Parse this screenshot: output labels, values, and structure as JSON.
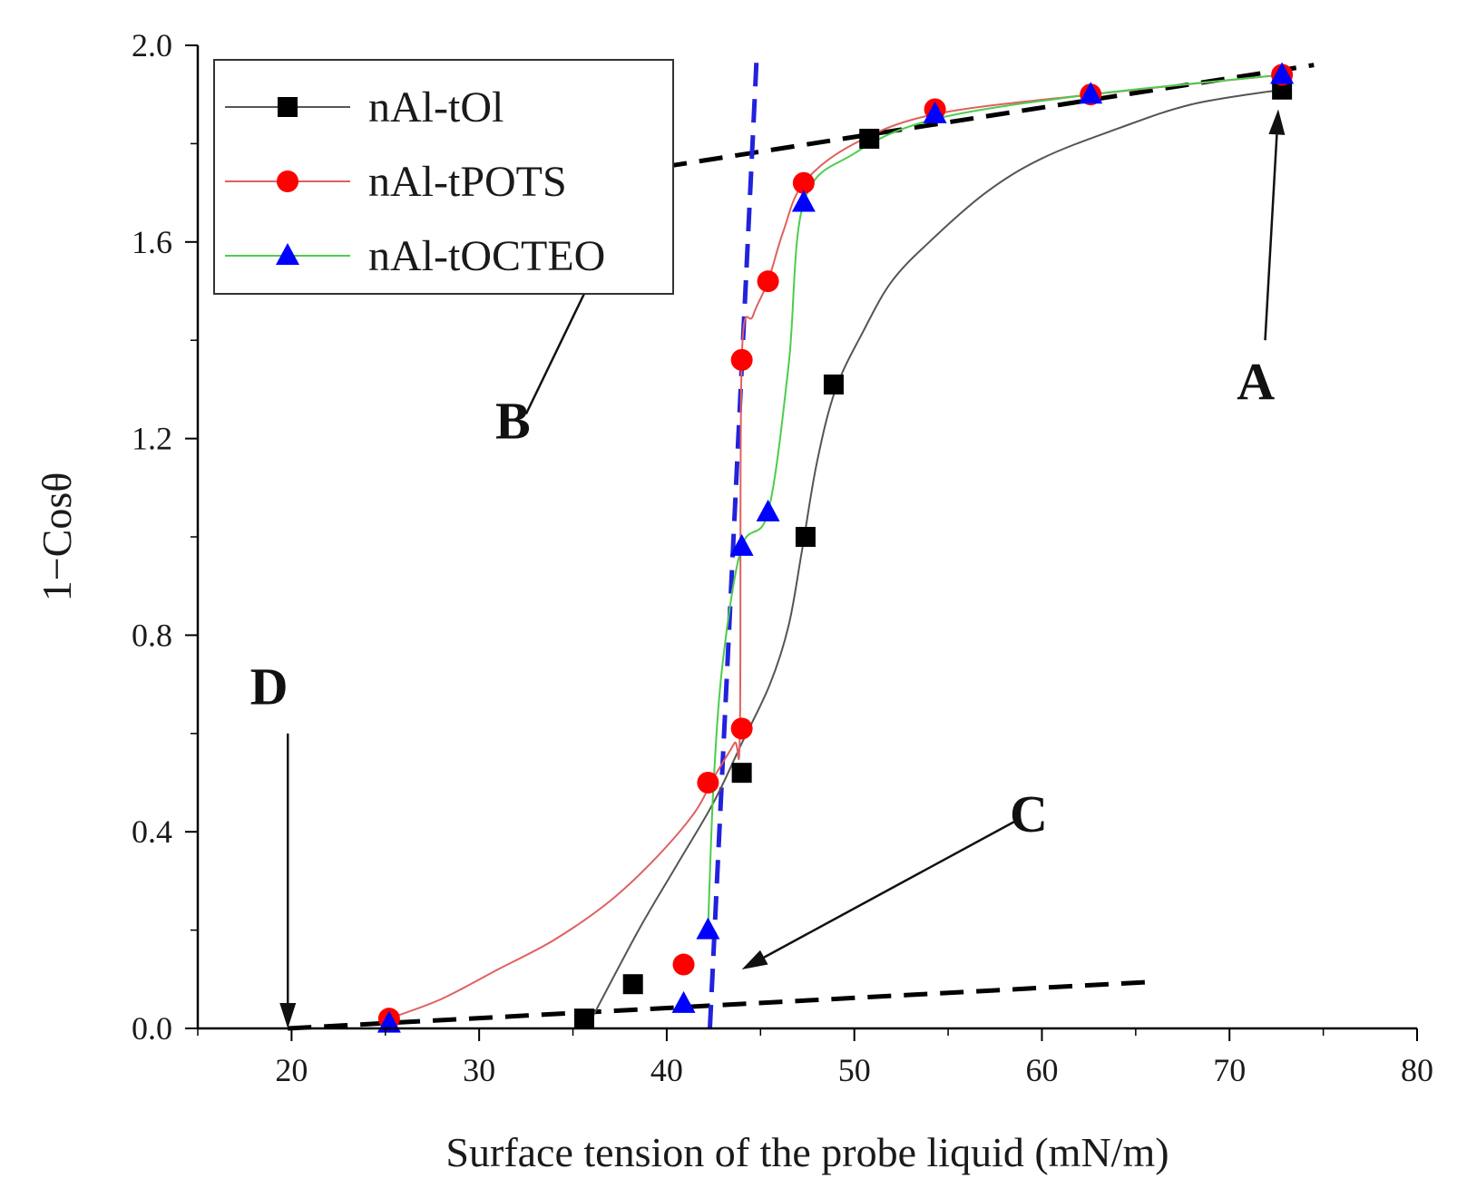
{
  "chart_data": {
    "type": "line",
    "xlabel": "Surface tension of the probe liquid (mN/m)",
    "ylabel": "1−Cosθ",
    "xlim": [
      15,
      80
    ],
    "ylim": [
      0,
      2.0
    ],
    "x_ticks": [
      20,
      30,
      40,
      50,
      60,
      70,
      80
    ],
    "y_ticks": [
      0.0,
      0.4,
      0.8,
      1.2,
      1.6,
      2.0
    ],
    "y_tick_labels": [
      "0.0",
      "0.4",
      "0.8",
      "1.2",
      "1.6",
      "2.0"
    ],
    "grid": false,
    "legend_position": "top-left",
    "series": [
      {
        "name": "nAl-tOl",
        "color": "#000000",
        "line_color": "#555555",
        "marker": "square",
        "points": [
          [
            35.6,
            0.02
          ],
          [
            38.2,
            0.09
          ],
          [
            44.0,
            0.52
          ],
          [
            47.4,
            1.0
          ],
          [
            48.9,
            1.31
          ],
          [
            50.8,
            1.81
          ],
          [
            72.8,
            1.91
          ]
        ],
        "curve": [
          [
            36.0,
            0.02
          ],
          [
            38.5,
            0.2
          ],
          [
            40.5,
            0.33
          ],
          [
            42.5,
            0.46
          ],
          [
            44.0,
            0.58
          ],
          [
            45.5,
            0.7
          ],
          [
            46.5,
            0.82
          ],
          [
            47.2,
            0.97
          ],
          [
            48.0,
            1.15
          ],
          [
            49.0,
            1.3
          ],
          [
            50.5,
            1.42
          ],
          [
            52.0,
            1.52
          ],
          [
            54.0,
            1.6
          ],
          [
            57.0,
            1.7
          ],
          [
            60.0,
            1.77
          ],
          [
            64.0,
            1.83
          ],
          [
            68.0,
            1.88
          ],
          [
            72.8,
            1.91
          ]
        ]
      },
      {
        "name": "nAl-tPOTS",
        "color": "#ff0000",
        "line_color": "#e06060",
        "marker": "circle",
        "points": [
          [
            25.2,
            0.02
          ],
          [
            40.9,
            0.13
          ],
          [
            42.2,
            0.5
          ],
          [
            44.0,
            0.61
          ],
          [
            44.0,
            1.36
          ],
          [
            45.4,
            1.52
          ],
          [
            47.3,
            1.72
          ],
          [
            54.3,
            1.87
          ],
          [
            62.6,
            1.9
          ],
          [
            72.8,
            1.94
          ]
        ],
        "curve": [
          [
            25.2,
            0.02
          ],
          [
            28.0,
            0.06
          ],
          [
            31.0,
            0.12
          ],
          [
            34.0,
            0.18
          ],
          [
            37.0,
            0.26
          ],
          [
            39.5,
            0.35
          ],
          [
            41.5,
            0.44
          ],
          [
            42.5,
            0.51
          ],
          [
            43.6,
            0.58
          ],
          [
            43.9,
            0.61
          ],
          [
            44.0,
            1.36
          ],
          [
            44.6,
            1.45
          ],
          [
            45.4,
            1.52
          ],
          [
            46.2,
            1.62
          ],
          [
            47.3,
            1.72
          ],
          [
            50.0,
            1.8
          ],
          [
            54.3,
            1.86
          ],
          [
            62.6,
            1.9
          ],
          [
            72.8,
            1.94
          ]
        ]
      },
      {
        "name": "nAl-tOCTEO",
        "color": "#0000ff",
        "line_color": "#4ccd4c",
        "marker": "triangle",
        "points": [
          [
            25.2,
            0.01
          ],
          [
            40.9,
            0.05
          ],
          [
            42.2,
            0.2
          ],
          [
            44.0,
            0.98
          ],
          [
            45.4,
            1.05
          ],
          [
            47.3,
            1.68
          ],
          [
            54.3,
            1.86
          ],
          [
            62.6,
            1.9
          ],
          [
            72.8,
            1.94
          ]
        ],
        "curve": [
          [
            42.2,
            0.2
          ],
          [
            42.5,
            0.5
          ],
          [
            43.0,
            0.75
          ],
          [
            44.0,
            0.98
          ],
          [
            45.4,
            1.05
          ],
          [
            46.5,
            1.35
          ],
          [
            47.3,
            1.68
          ],
          [
            50.0,
            1.78
          ],
          [
            54.3,
            1.85
          ],
          [
            62.6,
            1.9
          ],
          [
            72.8,
            1.94
          ]
        ]
      }
    ],
    "reference_lines": [
      {
        "color": "#000000",
        "points": [
          [
            19.8,
            0.0
          ],
          [
            66.0,
            0.095
          ]
        ]
      },
      {
        "color": "#000000",
        "points": [
          [
            36.0,
            1.73
          ],
          [
            74.5,
            1.96
          ]
        ]
      },
      {
        "color": "#2222dd",
        "points": [
          [
            42.3,
            0.0
          ],
          [
            44.8,
            1.98
          ]
        ]
      }
    ],
    "annotations": [
      {
        "text": "A",
        "label_at": [
          71.4,
          1.28
        ],
        "arrow_from": [
          71.9,
          1.4
        ],
        "arrow_to": [
          72.6,
          1.87
        ]
      },
      {
        "text": "B",
        "label_at": [
          31.8,
          1.2
        ],
        "arrow_from": [
          32.5,
          1.25
        ],
        "arrow_to": [
          38.2,
          1.7
        ]
      },
      {
        "text": "C",
        "label_at": [
          59.3,
          0.4
        ],
        "arrow_from": [
          58.5,
          0.42
        ],
        "arrow_to": [
          44.0,
          0.12
        ]
      },
      {
        "text": "D",
        "label_at": [
          18.8,
          0.66
        ],
        "arrow_from": [
          19.8,
          0.6
        ],
        "arrow_to": [
          19.8,
          0.0
        ]
      }
    ]
  }
}
